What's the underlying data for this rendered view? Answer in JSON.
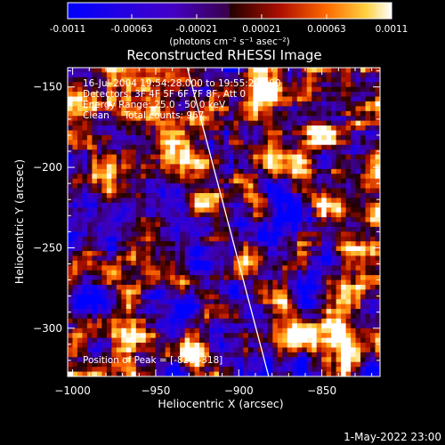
{
  "chart_data": {
    "type": "heatmap",
    "title": "Reconstructed RHESSI Image",
    "xlabel": "Heliocentric X (arcsec)",
    "ylabel": "Heliocentric Y (arcsec)",
    "xlim": [
      -1003,
      -815
    ],
    "ylim": [
      -330,
      -138
    ],
    "xticks": [
      -1000,
      -950,
      -900,
      -850
    ],
    "yticks": [
      -150,
      -200,
      -250,
      -300
    ],
    "colorbar": {
      "min": -0.0011,
      "max": 0.0011,
      "ticks": [
        "-0.0011",
        "-0.00063",
        "-0.00021",
        "0.00021",
        "0.00063",
        "0.0011"
      ],
      "unit_label": "(photons cm⁻² s⁻¹ asec⁻²)"
    },
    "annotations": {
      "time": "16-Jul-2004 19:54:28.000 to 19:55:20.000",
      "detectors": "Detectors: 3F 4F 5F 6F 7F 8F, Att 0",
      "energy": "Energy Range: 25.0 - 50.0 keV",
      "clean": "Clean     Total counts: 967.",
      "peak": "Position of Peak = [-821,-318]"
    },
    "limb": {
      "x_top": -931,
      "x_bottom": -882
    },
    "timestamp": "1-May-2022 23:00"
  }
}
